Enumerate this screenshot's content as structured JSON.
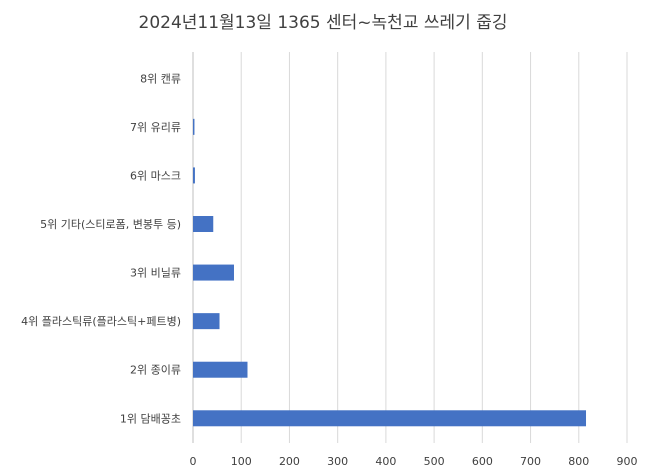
{
  "chart_data": {
    "type": "bar",
    "orientation": "horizontal",
    "title": "2024년11월13일 1365 센터~녹천교 쓰레기 줍깅",
    "xlabel": "",
    "ylabel": "",
    "categories": [
      "8위 캔류",
      "7위 유리류",
      "6위 마스크",
      "5위 기타(스티로폼, 변봉투 등)",
      "3위 비닐류",
      "4위 플라스틱류(플라스틱+페트병)",
      "2위 종이류",
      "1위 담배꽁초"
    ],
    "values": [
      0,
      3,
      4,
      42,
      85,
      55,
      113,
      815
    ],
    "xlim": [
      0,
      900
    ],
    "xticks": [
      "0",
      "100",
      "200",
      "300",
      "400",
      "500",
      "600",
      "700",
      "800",
      "900"
    ],
    "grid": "vertical",
    "legend": "none",
    "bar_color": "#4472C4"
  }
}
